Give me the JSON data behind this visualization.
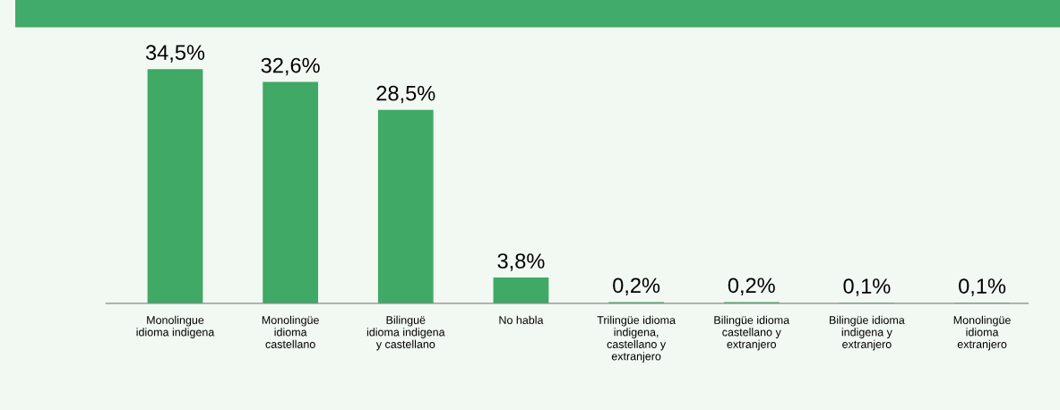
{
  "chart_data": {
    "type": "bar",
    "categories": [
      "Monolingue\nidioma indigena",
      "Monolingüe\nidioma\ncastellano",
      "Bilinguë\nidioma indigena\ny castellano",
      "No habla",
      "Trilingüe idioma\nindigena,\ncastellano y\nextranjero",
      "Bilingüe idioma\ncastellano y\nextranjero",
      "Bilingüe idioma\nindigena y\nextranjero",
      "Monolingüe\nidioma\nextranjero"
    ],
    "values": [
      34.5,
      32.6,
      28.5,
      3.8,
      0.2,
      0.2,
      0.1,
      0.1
    ],
    "value_labels": [
      "34,5%",
      "32,6%",
      "28,5%",
      "3,8%",
      "0,2%",
      "0,2%",
      "0,1%",
      "0,1%"
    ],
    "color": "#3fa965",
    "grid": false,
    "legend": false
  }
}
